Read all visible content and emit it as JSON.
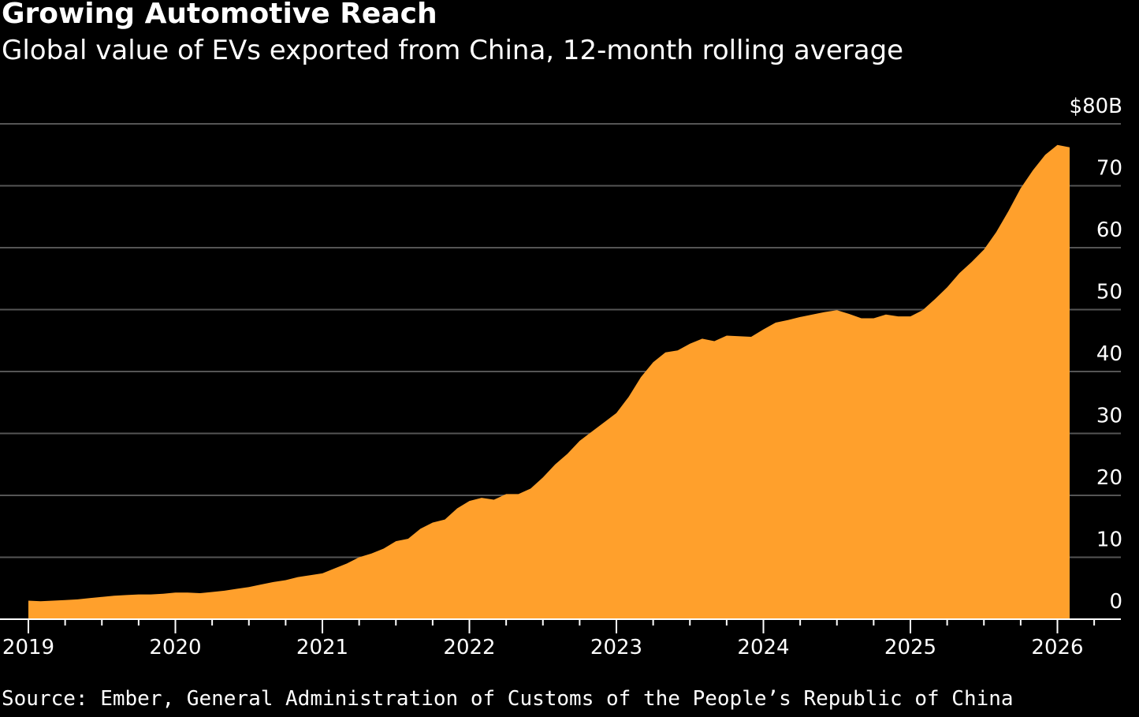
{
  "header": {
    "title": "Growing Automotive Reach",
    "subtitle": "Global value of EVs exported from China, 12-month rolling average"
  },
  "footer": {
    "source": "Source: Ember, General Administration of Customs of the People’s Republic of China"
  },
  "colors": {
    "background": "#000000",
    "area_fill": "#FFA02C",
    "gridline": "#555555",
    "axis": "#ffffff"
  },
  "chart_data": {
    "type": "area",
    "title": "Growing Automotive Reach",
    "subtitle": "Global value of EVs exported from China, 12-month rolling average",
    "xlabel": "",
    "ylabel": "",
    "x_range": [
      "2019-01",
      "2026-02"
    ],
    "ylim": [
      0,
      80
    ],
    "y_ticks": [
      0,
      10,
      20,
      30,
      40,
      50,
      60,
      70,
      80
    ],
    "y_tick_labels": [
      "0",
      "10",
      "20",
      "30",
      "40",
      "50",
      "60",
      "70",
      "$80B"
    ],
    "y_axis_position": "right",
    "x_ticks": [
      "2019",
      "2020",
      "2021",
      "2022",
      "2023",
      "2024",
      "2025",
      "2026"
    ],
    "grid": true,
    "legend": "none",
    "x": [
      "2019-01",
      "2019-02",
      "2019-03",
      "2019-04",
      "2019-05",
      "2019-06",
      "2019-07",
      "2019-08",
      "2019-09",
      "2019-10",
      "2019-11",
      "2019-12",
      "2020-01",
      "2020-02",
      "2020-03",
      "2020-04",
      "2020-05",
      "2020-06",
      "2020-07",
      "2020-08",
      "2020-09",
      "2020-10",
      "2020-11",
      "2020-12",
      "2021-01",
      "2021-02",
      "2021-03",
      "2021-04",
      "2021-05",
      "2021-06",
      "2021-07",
      "2021-08",
      "2021-09",
      "2021-10",
      "2021-11",
      "2021-12",
      "2022-01",
      "2022-02",
      "2022-03",
      "2022-04",
      "2022-05",
      "2022-06",
      "2022-07",
      "2022-08",
      "2022-09",
      "2022-10",
      "2022-11",
      "2022-12",
      "2023-01",
      "2023-02",
      "2023-03",
      "2023-04",
      "2023-05",
      "2023-06",
      "2023-07",
      "2023-08",
      "2023-09",
      "2023-10",
      "2023-11",
      "2023-12",
      "2024-01",
      "2024-02",
      "2024-03",
      "2024-04",
      "2024-05",
      "2024-06",
      "2024-07",
      "2024-08",
      "2024-09",
      "2024-10",
      "2024-11",
      "2024-12",
      "2025-01",
      "2025-02",
      "2025-03",
      "2025-04",
      "2025-05",
      "2025-06",
      "2025-07",
      "2025-08",
      "2025-09",
      "2025-10",
      "2025-11",
      "2025-12",
      "2026-01",
      "2026-02"
    ],
    "series": [
      {
        "values": [
          3.0,
          2.9,
          3.0,
          3.1,
          3.2,
          3.4,
          3.6,
          3.8,
          3.9,
          4.0,
          4.0,
          4.1,
          4.3,
          4.3,
          4.2,
          4.4,
          4.6,
          4.9,
          5.2,
          5.6,
          6.0,
          6.3,
          6.8,
          7.1,
          7.4,
          8.2,
          9.0,
          10.0,
          10.6,
          11.4,
          12.6,
          13.0,
          14.6,
          15.6,
          16.1,
          17.9,
          19.1,
          19.6,
          19.3,
          20.2,
          20.2,
          21.1,
          22.9,
          25.0,
          26.7,
          28.8,
          30.3,
          31.8,
          33.3,
          35.9,
          39.1,
          41.5,
          43.1,
          43.4,
          44.5,
          45.3,
          44.9,
          45.8,
          45.7,
          45.6,
          46.8,
          47.9,
          48.3,
          48.8,
          49.2,
          49.6,
          49.9,
          49.3,
          48.6,
          48.6,
          49.2,
          48.9,
          48.9,
          49.9,
          51.7,
          53.6,
          55.9,
          57.7,
          59.7,
          62.5,
          65.9,
          69.6,
          72.5,
          75.0,
          76.6,
          76.2
        ]
      }
    ]
  }
}
